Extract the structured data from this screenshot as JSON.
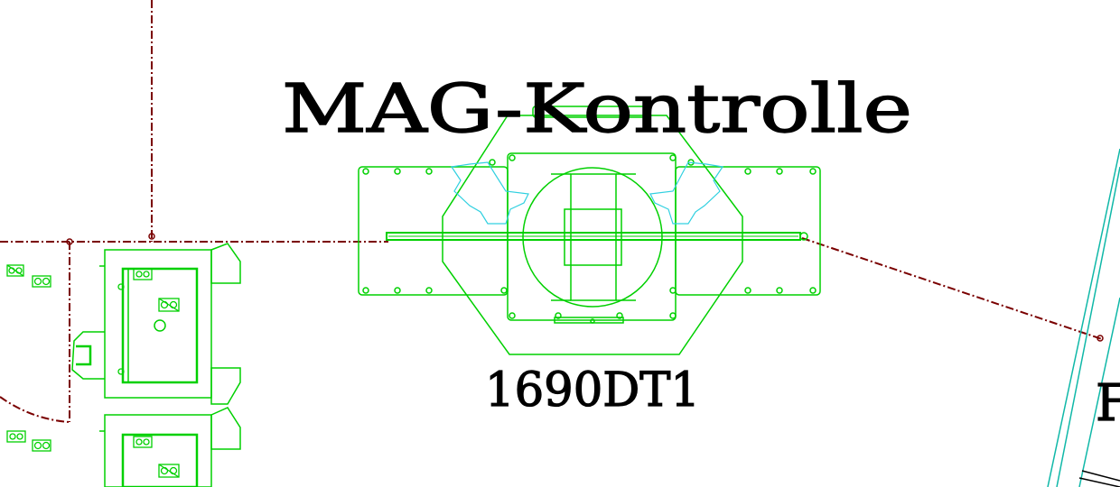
{
  "drawing": {
    "title": "MAG-Kontrolle",
    "equipment_label": "1690DT1",
    "edge_label": "F"
  },
  "colors": {
    "background": "#ffffff",
    "equipment": "#00d000",
    "boundary": "#7a0000",
    "outline_cyan": "#30d0e0",
    "rail": "#10b8a8",
    "text": "#000000"
  }
}
